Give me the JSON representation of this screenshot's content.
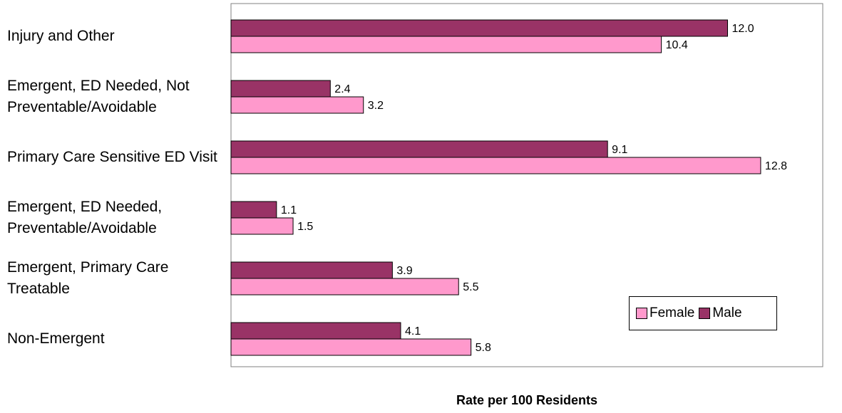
{
  "chart_data": {
    "type": "bar",
    "orientation": "horizontal",
    "title": "",
    "xlabel": "Rate per 100 Residents",
    "ylabel": "",
    "xlim": [
      0,
      14.3
    ],
    "grid": false,
    "legend_position": "bottom-right",
    "categories": [
      "Injury and Other",
      "Emergent, ED Needed, Not Preventable/Avoidable",
      "Primary Care Sensitive ED Visit",
      "Emergent, ED Needed, Preventable/Avoidable",
      "Emergent, Primary Care Treatable",
      "Non-Emergent"
    ],
    "series": [
      {
        "name": "Male",
        "color": "#993366",
        "values": [
          12.0,
          2.4,
          9.1,
          1.1,
          3.9,
          4.1
        ],
        "labels": [
          "12.0",
          "2.4",
          "9.1",
          "1.1",
          "3.9",
          "4.1"
        ]
      },
      {
        "name": "Female",
        "color": "#ff99cc",
        "values": [
          10.4,
          3.2,
          12.8,
          1.5,
          5.5,
          5.8
        ],
        "labels": [
          "10.4",
          "3.2",
          "12.8",
          "1.5",
          "5.5",
          "5.8"
        ]
      }
    ],
    "legend": [
      "Female",
      "Male"
    ]
  }
}
